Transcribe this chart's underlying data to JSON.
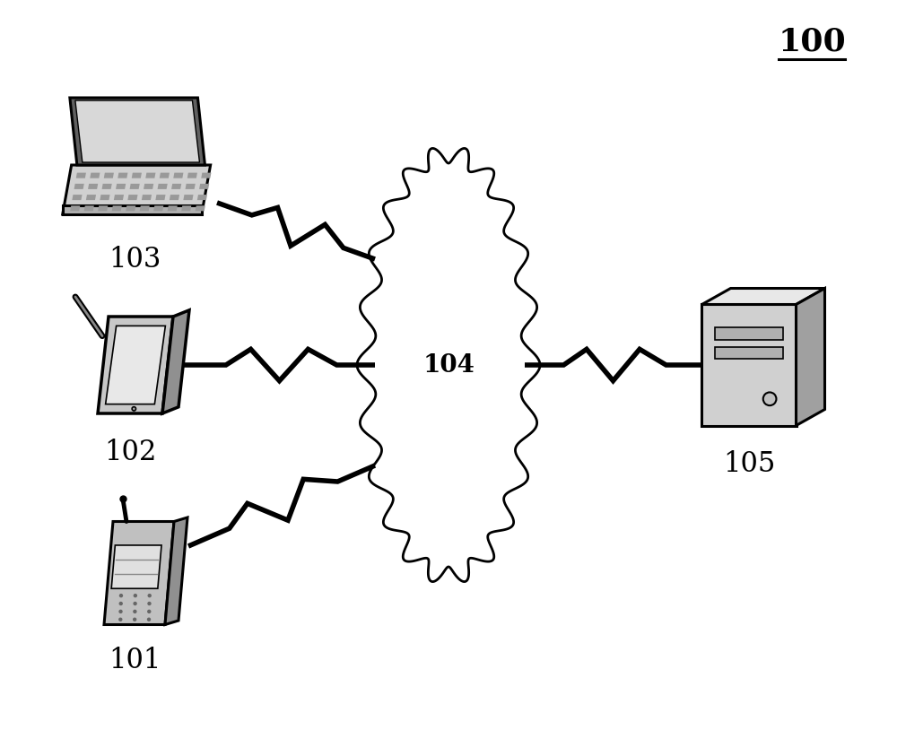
{
  "title": "100",
  "label_101": "101",
  "label_102": "102",
  "label_103": "103",
  "label_104": "104",
  "label_105": "105",
  "bg_color": "#ffffff",
  "line_color": "#000000",
  "figsize": [
    10.0,
    8.14
  ],
  "dpi": 100
}
